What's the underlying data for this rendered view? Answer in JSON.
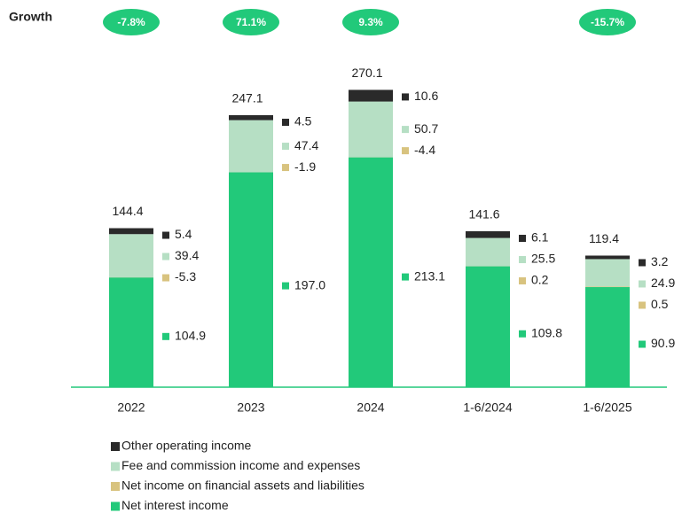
{
  "chart_data": {
    "type": "stacked_bar",
    "categories": [
      "2022",
      "2023",
      "2024",
      "1-6/2024",
      "1-6/2025"
    ],
    "series": [
      {
        "name": "Net interest income",
        "color": "#22c97a",
        "values": [
          104.9,
          197.0,
          213.1,
          109.8,
          90.9
        ],
        "value_labels": [
          "104.9",
          "197.0",
          "213.1",
          "109.8",
          "90.9"
        ]
      },
      {
        "name": "Net income on financial assets and liabilities",
        "color": "#d8c37f",
        "values": [
          -5.3,
          -1.9,
          -4.4,
          0.2,
          0.5
        ]
      },
      {
        "name": "Fee and commission income and expenses",
        "color": "#b6dfc4",
        "values": [
          39.4,
          47.4,
          50.7,
          25.5,
          24.9
        ]
      },
      {
        "name": "Other operating income",
        "color": "#2a2a2a",
        "values": [
          5.4,
          4.5,
          10.6,
          6.1,
          3.2
        ]
      }
    ],
    "totals": [
      144.4,
      247.1,
      270.1,
      141.6,
      119.4
    ],
    "growth": {
      "label": "Growth",
      "color": "#22c97a",
      "values": [
        -7.8,
        71.1,
        9.3,
        null,
        -15.7
      ],
      "value_labels": [
        "-7.8%",
        "71.1%",
        "9.3%",
        null,
        "-15.7%"
      ]
    },
    "ylim": [
      0,
      280
    ],
    "legend": "bottom-left"
  }
}
